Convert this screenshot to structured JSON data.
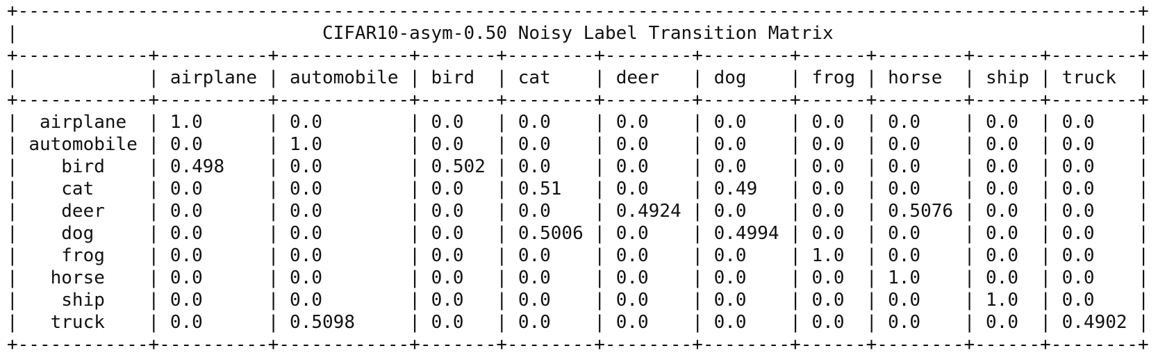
{
  "chart_data": {
    "type": "table",
    "title": "CIFAR10-asym-0.50 Noisy Label Transition Matrix",
    "columns": [
      "",
      "airplane",
      "automobile",
      "bird",
      "cat",
      "deer",
      "dog",
      "frog",
      "horse",
      "ship",
      "truck"
    ],
    "rows": [
      {
        "label": "airplane",
        "values": [
          "1.0",
          "0.0",
          "0.0",
          "0.0",
          "0.0",
          "0.0",
          "0.0",
          "0.0",
          "0.0",
          "0.0"
        ]
      },
      {
        "label": "automobile",
        "values": [
          "0.0",
          "1.0",
          "0.0",
          "0.0",
          "0.0",
          "0.0",
          "0.0",
          "0.0",
          "0.0",
          "0.0"
        ]
      },
      {
        "label": "bird",
        "values": [
          "0.498",
          "0.0",
          "0.502",
          "0.0",
          "0.0",
          "0.0",
          "0.0",
          "0.0",
          "0.0",
          "0.0"
        ]
      },
      {
        "label": "cat",
        "values": [
          "0.0",
          "0.0",
          "0.0",
          "0.51",
          "0.0",
          "0.49",
          "0.0",
          "0.0",
          "0.0",
          "0.0"
        ]
      },
      {
        "label": "deer",
        "values": [
          "0.0",
          "0.0",
          "0.0",
          "0.0",
          "0.4924",
          "0.0",
          "0.0",
          "0.5076",
          "0.0",
          "0.0"
        ]
      },
      {
        "label": "dog",
        "values": [
          "0.0",
          "0.0",
          "0.0",
          "0.5006",
          "0.0",
          "0.4994",
          "0.0",
          "0.0",
          "0.0",
          "0.0"
        ]
      },
      {
        "label": "frog",
        "values": [
          "0.0",
          "0.0",
          "0.0",
          "0.0",
          "0.0",
          "0.0",
          "1.0",
          "0.0",
          "0.0",
          "0.0"
        ]
      },
      {
        "label": "horse",
        "values": [
          "0.0",
          "0.0",
          "0.0",
          "0.0",
          "0.0",
          "0.0",
          "0.0",
          "1.0",
          "0.0",
          "0.0"
        ]
      },
      {
        "label": "ship",
        "values": [
          "0.0",
          "0.0",
          "0.0",
          "0.0",
          "0.0",
          "0.0",
          "0.0",
          "0.0",
          "1.0",
          "0.0"
        ]
      },
      {
        "label": "truck",
        "values": [
          "0.0",
          "0.5098",
          "0.0",
          "0.0",
          "0.0",
          "0.0",
          "0.0",
          "0.0",
          "0.0",
          "0.4902"
        ]
      }
    ]
  }
}
